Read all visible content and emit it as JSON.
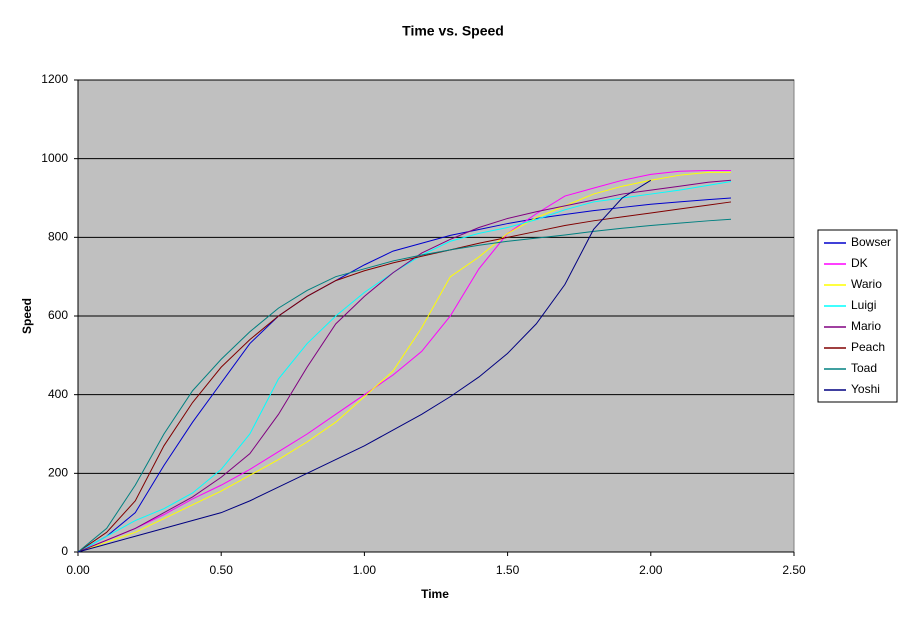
{
  "chart_data": {
    "type": "line",
    "title": "Time vs. Speed",
    "x_label": "Time",
    "y_label": "Speed",
    "x": [
      0,
      0.1,
      0.2,
      0.3,
      0.4,
      0.5,
      0.6,
      0.7,
      0.8,
      0.9,
      1.0,
      1.1,
      1.2,
      1.3,
      1.4,
      1.5,
      1.6,
      1.7,
      1.8,
      1.9,
      2.0,
      2.1,
      2.2,
      2.28
    ],
    "series": [
      {
        "name": "Bowser",
        "color": "#0000cc",
        "values": [
          0,
          40,
          100,
          220,
          330,
          430,
          530,
          600,
          650,
          690,
          730,
          765,
          785,
          805,
          820,
          835,
          848,
          858,
          868,
          876,
          884,
          890,
          896,
          900
        ]
      },
      {
        "name": "DK",
        "color": "#ff00ff",
        "values": [
          0,
          30,
          60,
          95,
          135,
          170,
          210,
          255,
          300,
          350,
          400,
          450,
          510,
          600,
          720,
          810,
          860,
          905,
          925,
          945,
          960,
          968,
          970,
          970
        ]
      },
      {
        "name": "Wario",
        "color": "#ffff00",
        "values": [
          0,
          25,
          50,
          85,
          120,
          155,
          195,
          235,
          280,
          330,
          395,
          460,
          570,
          700,
          750,
          810,
          850,
          880,
          910,
          930,
          945,
          958,
          965,
          965
        ]
      },
      {
        "name": "Luigi",
        "color": "#00ffff",
        "values": [
          0,
          40,
          80,
          110,
          150,
          210,
          300,
          440,
          530,
          600,
          660,
          710,
          755,
          790,
          810,
          825,
          845,
          870,
          890,
          900,
          910,
          920,
          932,
          942
        ]
      },
      {
        "name": "Mario",
        "color": "#800080",
        "values": [
          0,
          30,
          60,
          100,
          140,
          190,
          250,
          350,
          470,
          580,
          650,
          710,
          760,
          795,
          825,
          848,
          865,
          880,
          895,
          910,
          920,
          930,
          940,
          945
        ]
      },
      {
        "name": "Peach",
        "color": "#800000",
        "values": [
          0,
          50,
          130,
          270,
          380,
          470,
          540,
          600,
          650,
          690,
          715,
          735,
          752,
          768,
          785,
          800,
          815,
          830,
          842,
          852,
          862,
          872,
          882,
          890
        ]
      },
      {
        "name": "Toad",
        "color": "#008080",
        "values": [
          0,
          60,
          170,
          300,
          410,
          490,
          560,
          620,
          665,
          700,
          720,
          740,
          755,
          768,
          780,
          790,
          798,
          806,
          815,
          823,
          830,
          836,
          842,
          846
        ]
      },
      {
        "name": "Yoshi",
        "color": "#000080",
        "values": [
          0,
          20,
          40,
          60,
          80,
          100,
          130,
          165,
          200,
          235,
          270,
          310,
          350,
          395,
          445,
          505,
          580,
          680,
          820,
          900,
          945,
          null,
          null,
          null
        ]
      }
    ],
    "xlim": [
      0,
      2.5
    ],
    "xticks": [
      {
        "value": 0,
        "label": "0.00"
      },
      {
        "value": 0.5,
        "label": "0.50"
      },
      {
        "value": 1.0,
        "label": "1.00"
      },
      {
        "value": 1.5,
        "label": "1.50"
      },
      {
        "value": 2.0,
        "label": "2.00"
      },
      {
        "value": 2.5,
        "label": "2.50"
      }
    ],
    "ylim": [
      0,
      1200
    ],
    "yticks": [
      0,
      200,
      400,
      600,
      800,
      1000,
      1200
    ],
    "grid": true,
    "plot_background": "#c0c0c0",
    "legend": "right"
  }
}
